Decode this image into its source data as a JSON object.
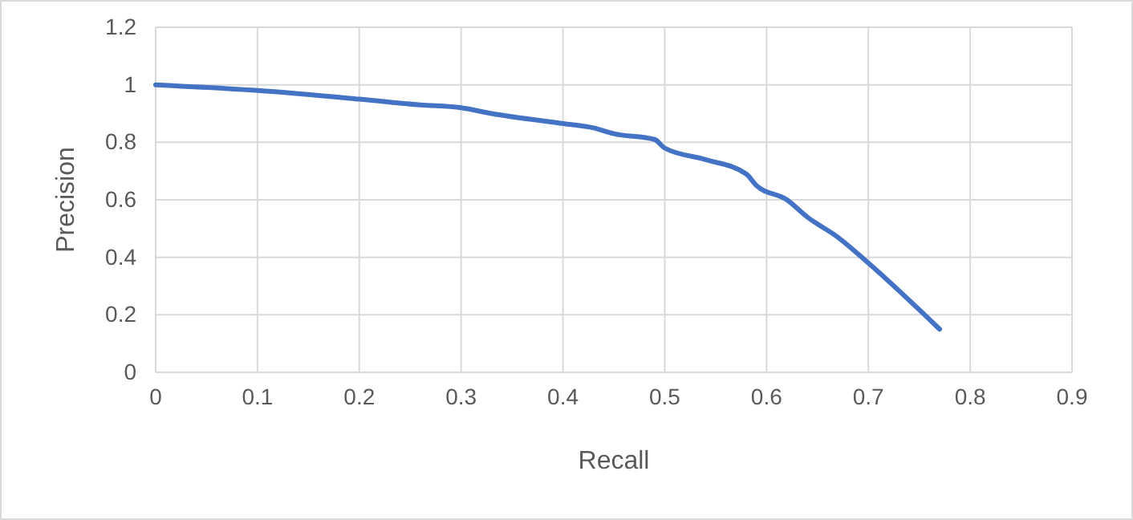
{
  "chart_data": {
    "type": "line",
    "xlabel": "Recall",
    "ylabel": "Precision",
    "xlim": [
      0,
      0.9
    ],
    "ylim": [
      0,
      1.2
    ],
    "xticks": [
      0,
      0.1,
      0.2,
      0.3,
      0.4,
      0.5,
      0.6,
      0.7,
      0.8,
      0.9
    ],
    "yticks": [
      0,
      0.2,
      0.4,
      0.6,
      0.8,
      1,
      1.2
    ],
    "grid": true,
    "series": [
      {
        "color": "#4472c4",
        "x": [
          0,
          0.1,
          0.2,
          0.26,
          0.3,
          0.33,
          0.4,
          0.43,
          0.45,
          0.49,
          0.5,
          0.54,
          0.58,
          0.59,
          0.62,
          0.64,
          0.67,
          0.7,
          0.77
        ],
        "values": [
          1,
          0.98,
          0.95,
          0.93,
          0.92,
          0.9,
          0.865,
          0.85,
          0.83,
          0.81,
          0.78,
          0.74,
          0.69,
          0.65,
          0.6,
          0.54,
          0.47,
          0.38,
          0.15
        ]
      }
    ]
  }
}
